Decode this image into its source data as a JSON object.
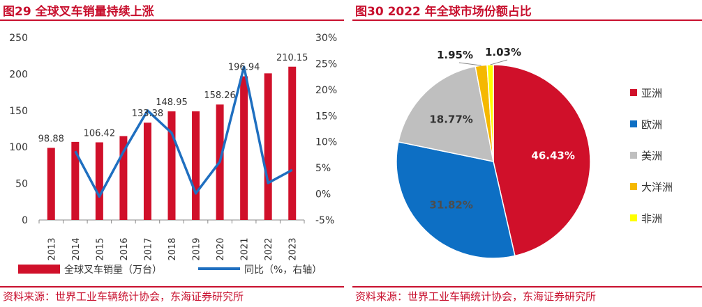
{
  "left": {
    "title": "图29  全球叉车销量持续上涨",
    "source": "资料来源：世界工业车辆统计协会，东海证券研究所"
  },
  "right": {
    "title": "图30  2022 年全球市场份额占比",
    "source": "资料来源：世界工业车辆统计协会，东海证券研究所"
  },
  "colors": {
    "accent": "#c8102e",
    "bar": "#d0102a",
    "line": "#1f6fc0"
  },
  "chart_data": [
    {
      "type": "bar",
      "categories": [
        "2013",
        "2014",
        "2015",
        "2016",
        "2017",
        "2018",
        "2019",
        "2020",
        "2021",
        "2022",
        "2023"
      ],
      "series": [
        {
          "name": "全球叉车销量（万台）",
          "type": "bar",
          "axis": "left",
          "values": [
            98.88,
            107,
            106.42,
            115,
            133.38,
            148.95,
            149,
            158.26,
            196.94,
            201,
            210.15
          ]
        },
        {
          "name": "同比（%，右轴）",
          "type": "line",
          "axis": "right",
          "values": [
            null,
            8.2,
            -0.5,
            8.1,
            16.0,
            11.7,
            0.1,
            6.2,
            24.4,
            2.1,
            4.6
          ]
        }
      ],
      "data_labels": [
        {
          "index": 0,
          "text": "98.88"
        },
        {
          "index": 2,
          "text": "106.42"
        },
        {
          "index": 4,
          "text": "133.38"
        },
        {
          "index": 5,
          "text": "148.95"
        },
        {
          "index": 7,
          "text": "158.26"
        },
        {
          "index": 8,
          "text": "196.94"
        },
        {
          "index": 10,
          "text": "210.15"
        }
      ],
      "y_left": {
        "min": 0,
        "max": 250,
        "ticks": [
          0,
          50,
          100,
          150,
          200,
          250
        ]
      },
      "y_right": {
        "min": -5,
        "max": 30,
        "ticks": [
          "-5%",
          "0%",
          "5%",
          "10%",
          "15%",
          "20%",
          "25%",
          "30%"
        ]
      }
    },
    {
      "type": "pie",
      "slices": [
        {
          "label": "亚洲",
          "value": 46.43,
          "text": "46.43%",
          "color": "#d0102a",
          "text_color": "#ffffff"
        },
        {
          "label": "欧洲",
          "value": 31.82,
          "text": "31.82%",
          "color": "#0d6fc4",
          "text_color": "#4d4d4d"
        },
        {
          "label": "美洲",
          "value": 18.77,
          "text": "18.77%",
          "color": "#bfbfbf",
          "text_color": "#333333"
        },
        {
          "label": "大洋洲",
          "value": 1.95,
          "text": "1.95%",
          "color": "#f5b800",
          "text_color": "#222222"
        },
        {
          "label": "非洲",
          "value": 1.03,
          "text": "1.03%",
          "color": "#ffff00",
          "text_color": "#222222"
        }
      ]
    }
  ]
}
